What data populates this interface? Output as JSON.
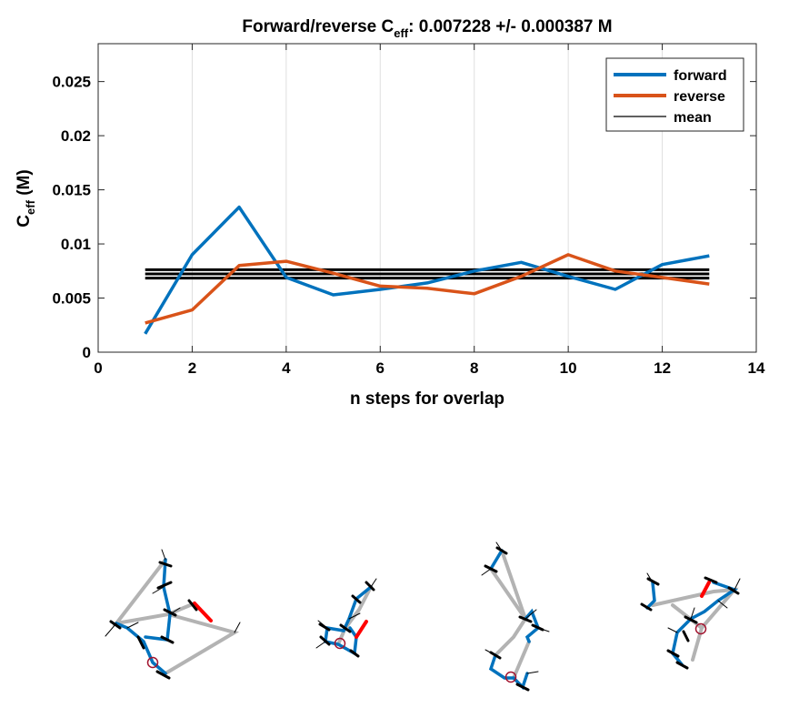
{
  "chart_data": {
    "type": "line",
    "title": "Forward/reverse C",
    "title_sub": "eff",
    "title_rest": ": 0.007228 +/- 0.000387 M",
    "xlabel": "n steps for overlap",
    "ylabel": "C",
    "ylabel_sub": "eff",
    "ylabel_rest": " (M)",
    "xlim": [
      0,
      14
    ],
    "ylim": [
      0,
      0.0285
    ],
    "xticks": [
      0,
      2,
      4,
      6,
      8,
      10,
      12,
      14
    ],
    "xtick_labels": [
      "0",
      "2",
      "4",
      "6",
      "8",
      "10",
      "12",
      "14"
    ],
    "yticks": [
      0,
      0.005,
      0.01,
      0.015,
      0.02,
      0.025
    ],
    "ytick_labels": [
      "0",
      "0.005",
      "0.01",
      "0.015",
      "0.02",
      "0.025"
    ],
    "grid": "vertical",
    "legend_position": "top-right",
    "x": [
      1,
      2,
      3,
      4,
      5,
      6,
      7,
      8,
      9,
      10,
      11,
      12,
      13
    ],
    "series": [
      {
        "name": "forward",
        "color": "#0072BD",
        "values": [
          0.0017,
          0.009,
          0.0134,
          0.0069,
          0.0053,
          0.0058,
          0.0064,
          0.0075,
          0.0083,
          0.007,
          0.0058,
          0.0081,
          0.0089
        ]
      },
      {
        "name": "reverse",
        "color": "#D95319",
        "values": [
          0.0027,
          0.0039,
          0.008,
          0.0084,
          0.0073,
          0.0061,
          0.0059,
          0.0054,
          0.007,
          0.009,
          0.0075,
          0.0069,
          0.0063
        ]
      }
    ],
    "mean": {
      "name": "mean",
      "color": "#000000",
      "x_range": [
        1,
        13
      ],
      "values": [
        0.007615,
        0.007228,
        0.006841
      ]
    }
  },
  "colors": {
    "grey_segment": "#B3B3B3",
    "blue_segment": "#0072BD",
    "red_segment": "#FF0000",
    "marker": "#A2142F"
  },
  "structure_icons": [
    "molecule-structure-1",
    "molecule-structure-2",
    "molecule-structure-3",
    "molecule-structure-4"
  ]
}
